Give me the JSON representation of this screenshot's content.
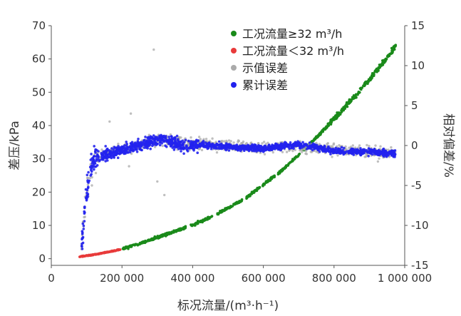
{
  "chart_data": {
    "type": "scatter",
    "title": "",
    "xlabel": "标况流量/(m³·h⁻¹)",
    "ylabel_left": "差压/kPa",
    "ylabel_right": "相对偏差/%",
    "xlim": [
      0,
      1000000
    ],
    "ylim_left": [
      -2,
      70
    ],
    "ylim_right": [
      -15,
      15
    ],
    "x_ticks": [
      0,
      200000,
      400000,
      600000,
      800000,
      1000000
    ],
    "x_tick_labels": [
      "0",
      "200 000",
      "400 000",
      "600 000",
      "800 000",
      "1 000 000"
    ],
    "y_left_ticks": [
      0,
      10,
      20,
      30,
      40,
      50,
      60,
      70
    ],
    "y_right_ticks": [
      -15,
      -10,
      -5,
      0,
      5,
      10,
      15
    ],
    "grid": false,
    "legend_position": "top-right",
    "series": [
      {
        "name": "工况流量≥32 m³/h",
        "axis": "left",
        "color": "#1a8a1a",
        "points": [
          [
            200000,
            2.9
          ],
          [
            250000,
            4.5
          ],
          [
            300000,
            6.4
          ],
          [
            350000,
            8.2
          ],
          [
            400000,
            10.2
          ],
          [
            450000,
            12.4
          ],
          [
            500000,
            15.2
          ],
          [
            550000,
            18.2
          ],
          [
            600000,
            22.3
          ],
          [
            650000,
            26.3
          ],
          [
            700000,
            31.2
          ],
          [
            750000,
            36.4
          ],
          [
            800000,
            42
          ],
          [
            850000,
            47.7
          ],
          [
            900000,
            53.9
          ],
          [
            950000,
            60.4
          ],
          [
            975000,
            64
          ]
        ]
      },
      {
        "name": "工况流量＜32 m³/h",
        "axis": "left",
        "color": "#e83a3a",
        "points": [
          [
            80000,
            0.6
          ],
          [
            100000,
            0.9
          ],
          [
            120000,
            1.2
          ],
          [
            140000,
            1.6
          ],
          [
            160000,
            2
          ],
          [
            180000,
            2.4
          ],
          [
            195000,
            2.8
          ]
        ]
      },
      {
        "name": "示值误差",
        "axis": "right",
        "color": "#aaaaaa",
        "points": [
          [
            85000,
            -12.5
          ],
          [
            90000,
            -10
          ],
          [
            100000,
            -6
          ],
          [
            110000,
            -3
          ],
          [
            120000,
            -1.5
          ],
          [
            150000,
            -1
          ],
          [
            200000,
            -0.5
          ],
          [
            250000,
            0
          ],
          [
            300000,
            0.8
          ],
          [
            350000,
            0.5
          ],
          [
            400000,
            0.2
          ],
          [
            500000,
            0
          ],
          [
            600000,
            -0.3
          ],
          [
            700000,
            -0.1
          ],
          [
            800000,
            -0.5
          ],
          [
            900000,
            -0.8
          ],
          [
            975000,
            -0.9
          ]
        ],
        "outliers": [
          [
            290000,
            12
          ],
          [
            225000,
            4
          ],
          [
            165000,
            3
          ],
          [
            300000,
            -4.5
          ],
          [
            320000,
            -6.2
          ],
          [
            220000,
            -2.6
          ],
          [
            115000,
            -5
          ]
        ]
      },
      {
        "name": "累计误差",
        "axis": "right",
        "color": "#2222ee",
        "points": [
          [
            85000,
            -13
          ],
          [
            90000,
            -11
          ],
          [
            95000,
            -8
          ],
          [
            100000,
            -6
          ],
          [
            110000,
            -3
          ],
          [
            120000,
            -1.8
          ],
          [
            150000,
            -1.2
          ],
          [
            200000,
            -0.6
          ],
          [
            250000,
            0
          ],
          [
            300000,
            0.8
          ],
          [
            350000,
            0.4
          ],
          [
            380000,
            -0.2
          ],
          [
            400000,
            0.1
          ],
          [
            500000,
            -0.1
          ],
          [
            600000,
            -0.4
          ],
          [
            650000,
            -0.1
          ],
          [
            700000,
            0.1
          ],
          [
            750000,
            -0.2
          ],
          [
            800000,
            -0.7
          ],
          [
            850000,
            -0.8
          ],
          [
            900000,
            -0.8
          ],
          [
            975000,
            -1
          ]
        ]
      }
    ]
  }
}
